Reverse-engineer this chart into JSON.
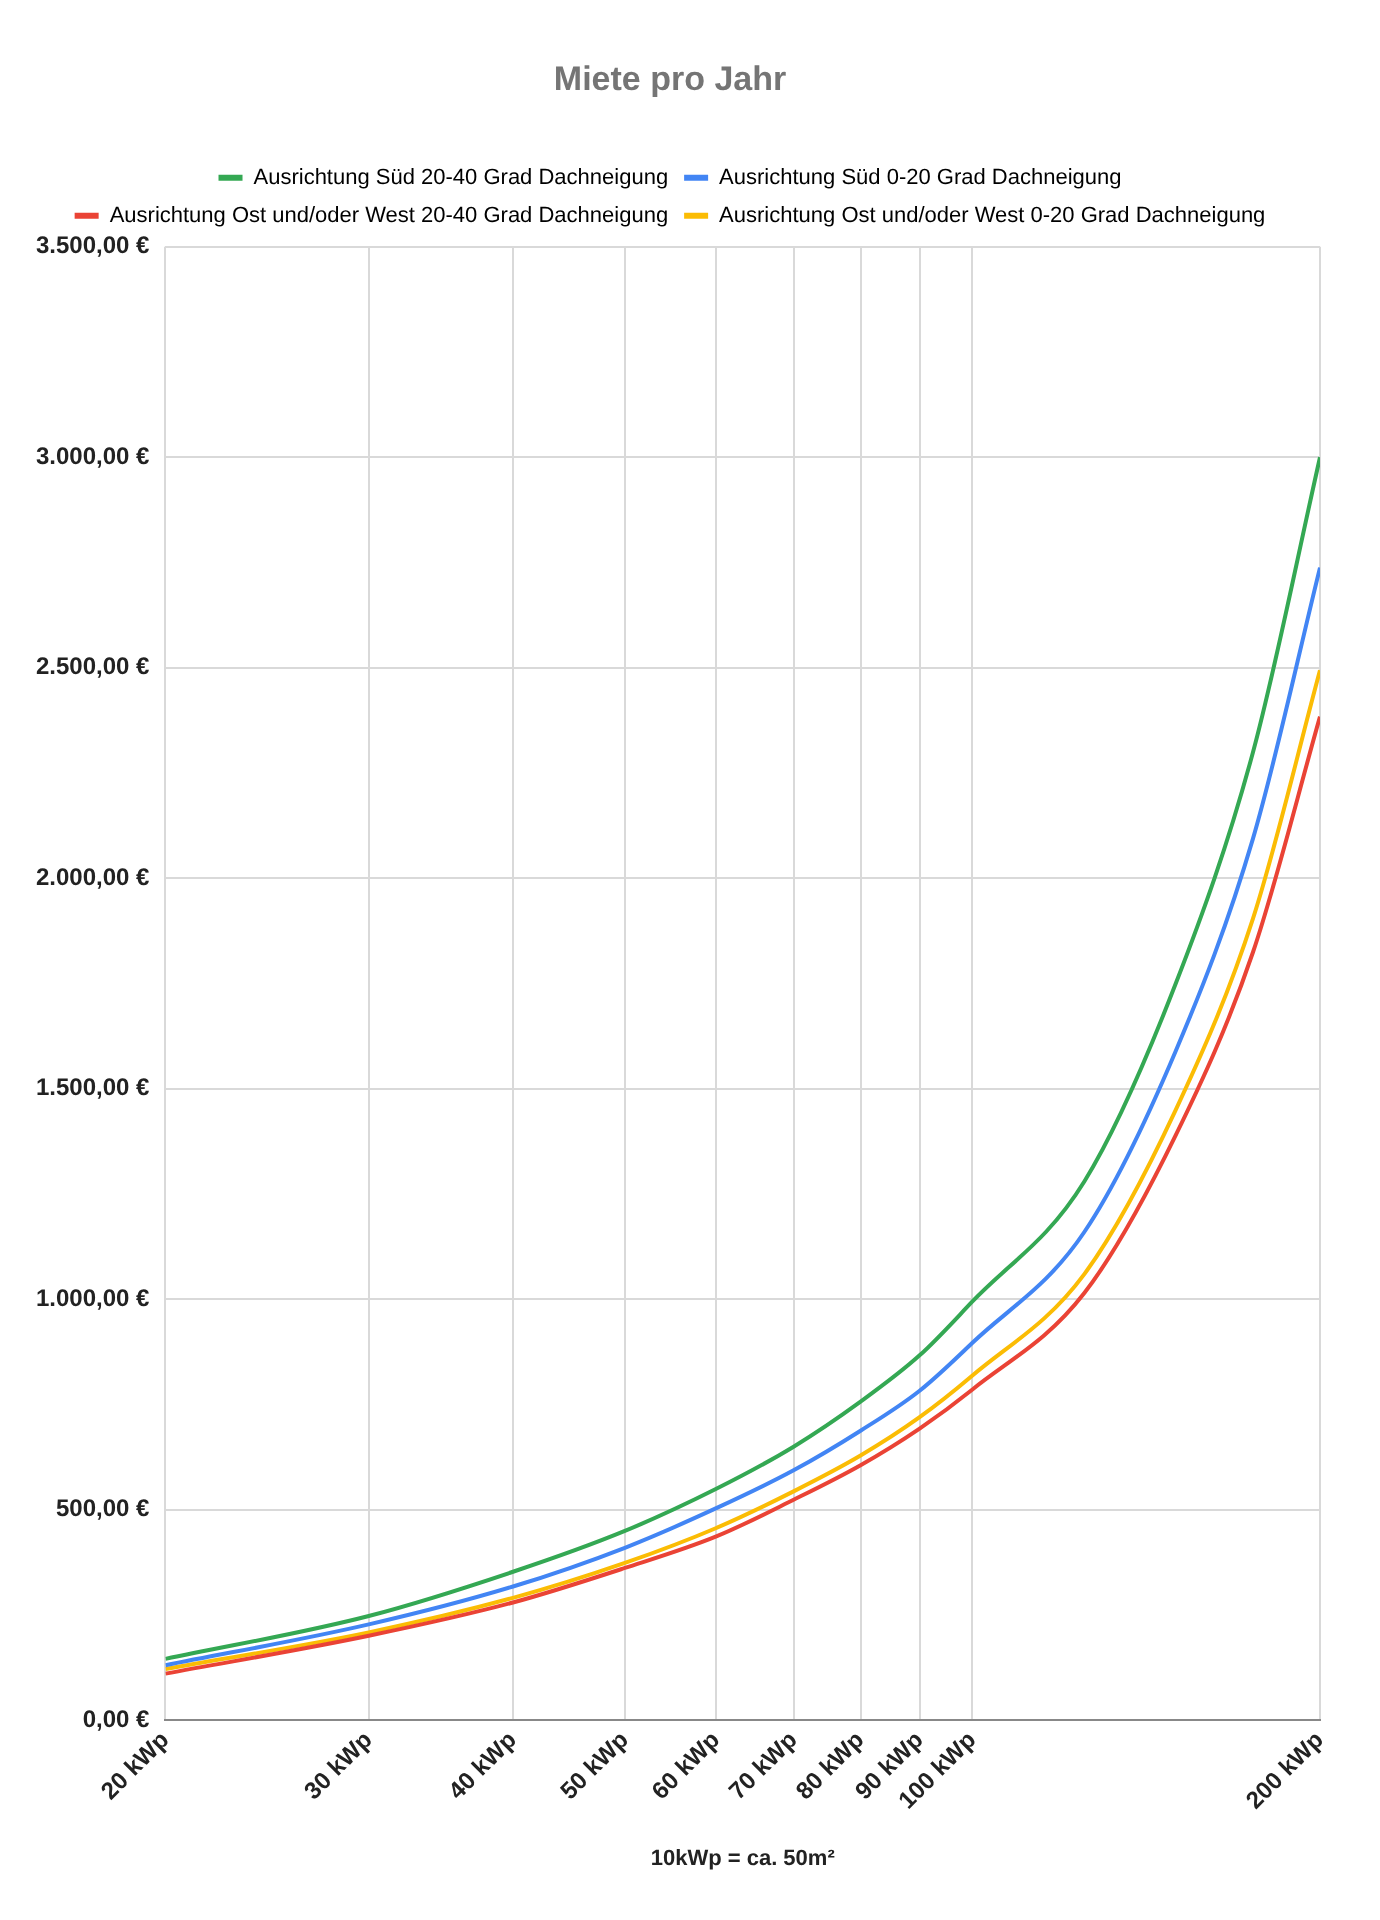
{
  "chart_data": {
    "type": "line",
    "title": "Miete pro Jahr",
    "xlabel": "10kWp = ca. 50m²",
    "x": [
      20,
      30,
      40,
      50,
      60,
      70,
      80,
      90,
      100,
      125,
      150,
      175,
      200
    ],
    "series": [
      {
        "name": "Ausrichtung Süd 20-40 Grad Dachneigung",
        "color": "#34a853",
        "values": [
          146,
          248,
          353,
          450,
          550,
          650,
          757,
          867,
          995,
          1280,
          1750,
          2300,
          3000
        ]
      },
      {
        "name": "Ausrichtung Süd 0-20 Grad Dachneigung",
        "color": "#4285f4",
        "values": [
          131,
          228,
          318,
          410,
          504,
          594,
          688,
          783,
          897,
          1160,
          1590,
          2095,
          2738
        ]
      },
      {
        "name": "Ausrichtung Ost und/oder West 20-40 Grad Dachneigung",
        "color": "#ea4335",
        "values": [
          111,
          201,
          280,
          362,
          437,
          524,
          606,
          693,
          786,
          1015,
          1390,
          1825,
          2384
        ]
      },
      {
        "name": "Ausrichtung Ost und/oder West 0-20 Grad Dachneigung",
        "color": "#fbbc04",
        "values": [
          122,
          209,
          291,
          374,
          457,
          544,
          629,
          720,
          819,
          1060,
          1450,
          1905,
          2494
        ]
      }
    ],
    "log": "x",
    "xlim": [
      20,
      200
    ],
    "xticks": [
      {
        "value": 20,
        "label": "20 kWp"
      },
      {
        "value": 30,
        "label": "30 kWp"
      },
      {
        "value": 40,
        "label": "40 kWp"
      },
      {
        "value": 50,
        "label": "50 kWp"
      },
      {
        "value": 60,
        "label": "60 kWp"
      },
      {
        "value": 70,
        "label": "70 kWp"
      },
      {
        "value": 80,
        "label": "80 kWp"
      },
      {
        "value": 90,
        "label": "90 kWp"
      },
      {
        "value": 100,
        "label": "100 kWp"
      },
      {
        "value": 200,
        "label": "200 kWp"
      }
    ],
    "ylim": [
      0,
      3500
    ],
    "yticks": [
      {
        "value": 0,
        "label": "0,00 €"
      },
      {
        "value": 500,
        "label": "500,00 €"
      },
      {
        "value": 1000,
        "label": "1.000,00 €"
      },
      {
        "value": 1500,
        "label": "1.500,00 €"
      },
      {
        "value": 2000,
        "label": "2.000,00 €"
      },
      {
        "value": 2500,
        "label": "2.500,00 €"
      },
      {
        "value": 3000,
        "label": "3.000,00 €"
      },
      {
        "value": 3500,
        "label": "3.500,00 €"
      }
    ],
    "grid": true,
    "legend": "top",
    "marker": "none",
    "line_style": "solid"
  }
}
